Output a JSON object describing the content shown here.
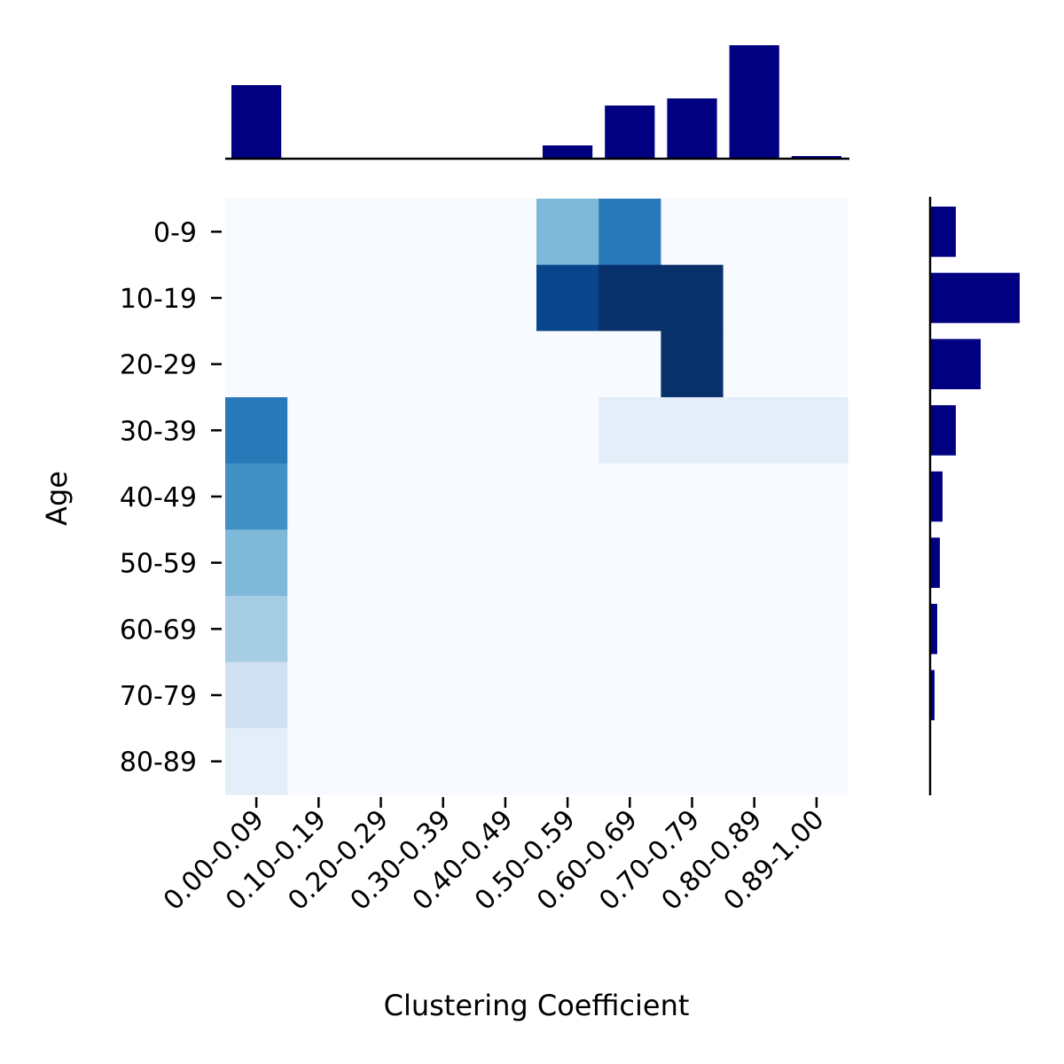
{
  "chart_data": {
    "type": "heatmap",
    "title": "",
    "xlabel": "Clustering Coefficient",
    "ylabel": "Age",
    "x_categories": [
      "0.00-0.09",
      "0.10-0.19",
      "0.20-0.29",
      "0.30-0.39",
      "0.40-0.49",
      "0.50-0.59",
      "0.60-0.69",
      "0.70-0.79",
      "0.80-0.89",
      "0.89-1.00"
    ],
    "y_categories": [
      "0-9",
      "10-19",
      "20-29",
      "30-39",
      "40-49",
      "50-59",
      "60-69",
      "70-79",
      "80-89"
    ],
    "colormap": "Blues",
    "value_range": [
      0,
      1
    ],
    "cells": [
      [
        0,
        0,
        0,
        0,
        0,
        0.45,
        0.72,
        0,
        0,
        0
      ],
      [
        0,
        0,
        0,
        0,
        0,
        0.92,
        1,
        1,
        0,
        0
      ],
      [
        0,
        0,
        0,
        0,
        0,
        0,
        0,
        1,
        0,
        0
      ],
      [
        0.72,
        0,
        0,
        0,
        0,
        0,
        0.1,
        0.1,
        0.1,
        0.1
      ],
      [
        0.63,
        0,
        0,
        0,
        0,
        0,
        0,
        0,
        0,
        0
      ],
      [
        0.45,
        0,
        0,
        0,
        0,
        0,
        0,
        0,
        0,
        0
      ],
      [
        0.35,
        0,
        0,
        0,
        0,
        0,
        0,
        0,
        0,
        0
      ],
      [
        0.2,
        0,
        0,
        0,
        0,
        0,
        0,
        0,
        0,
        0
      ],
      [
        0.1,
        0,
        0,
        0,
        0,
        0,
        0,
        0,
        0,
        0
      ]
    ],
    "marginal_top": {
      "type": "bar",
      "color": "#000080",
      "values": [
        83,
        0,
        0,
        0,
        0,
        15,
        60,
        68,
        128,
        3
      ]
    },
    "marginal_right": {
      "type": "bar",
      "orientation": "horizontal",
      "color": "#000080",
      "values": [
        28,
        100,
        56,
        28,
        13,
        10,
        7,
        4,
        0
      ]
    }
  }
}
